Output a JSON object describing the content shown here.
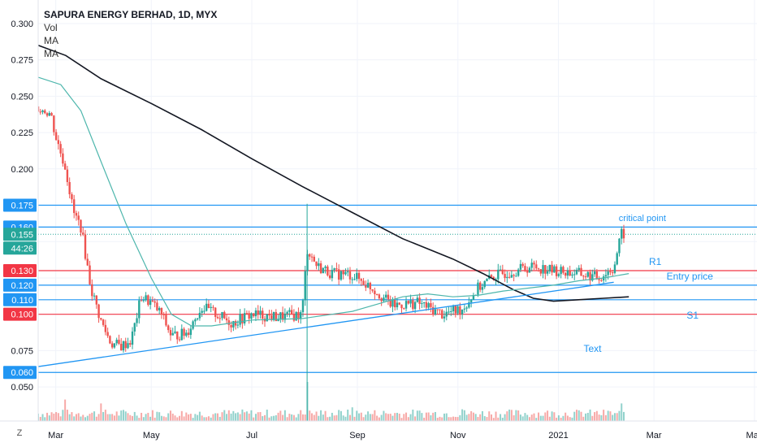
{
  "chart_data": {
    "type": "candlestick",
    "title": "SAPURA ENERGY BERHAD, 1D, MYX",
    "indicators": [
      "Vol",
      "MA",
      "MA"
    ],
    "y_ticks": [
      "0.300",
      "0.275",
      "0.250",
      "0.225",
      "0.200",
      "0.075",
      "0.050"
    ],
    "ylim": [
      0.04,
      0.305
    ],
    "x_ticks": [
      {
        "label": "Mar",
        "t": 0.1
      },
      {
        "label": "May",
        "t": 2.0
      },
      {
        "label": "Jul",
        "t": 4.0
      },
      {
        "label": "Sep",
        "t": 6.1
      },
      {
        "label": "Nov",
        "t": 8.1
      },
      {
        "label": "2021",
        "t": 10.1
      },
      {
        "label": "Mar",
        "t": 12.0
      },
      {
        "label": "May",
        "t": 14.0
      }
    ],
    "xlim": [
      -0.25,
      14.05
    ],
    "price_levels": [
      {
        "value": 0.175,
        "label": "0.175",
        "color": "#2196f3"
      },
      {
        "value": 0.16,
        "label": "0.160",
        "color": "#2196f3"
      },
      {
        "value": 0.155,
        "label": "0.155",
        "color": "#26a69a"
      },
      {
        "value": 0.13,
        "label": "0.130",
        "color": "#f23645"
      },
      {
        "value": 0.12,
        "label": "0.120",
        "color": "#2196f3"
      },
      {
        "value": 0.11,
        "label": "0.110",
        "color": "#2196f3"
      },
      {
        "value": 0.1,
        "label": "0.100",
        "color": "#f23645"
      },
      {
        "value": 0.06,
        "label": "0.060",
        "color": "#2196f3"
      }
    ],
    "countdown": "44:26",
    "horizontal_lines": [
      {
        "value": 0.175,
        "color": "#2196f3"
      },
      {
        "value": 0.16,
        "color": "#2196f3"
      },
      {
        "value": 0.13,
        "color": "#f23645"
      },
      {
        "value": 0.12,
        "color": "#2196f3"
      },
      {
        "value": 0.11,
        "color": "#2196f3"
      },
      {
        "value": 0.1,
        "color": "#f23645"
      },
      {
        "value": 0.06,
        "color": "#2196f3"
      }
    ],
    "dotted_line": {
      "value": 0.155,
      "color": "#26a69a"
    },
    "trendline": {
      "from": [
        -0.25,
        0.064
      ],
      "to": [
        11.2,
        0.122
      ],
      "color": "#2196f3"
    },
    "annotations": [
      {
        "text": "critical point",
        "t": 11.3,
        "y": 0.164,
        "color": "#2196f3"
      },
      {
        "text": "R1",
        "t": 11.9,
        "y": 0.134,
        "color": "#2196f3"
      },
      {
        "text": "Entry price",
        "t": 12.25,
        "y": 0.124,
        "color": "#2196f3"
      },
      {
        "text": "S1",
        "t": 12.65,
        "y": 0.097,
        "color": "#2196f3"
      },
      {
        "text": "Text",
        "t": 10.6,
        "y": 0.074,
        "color": "#2196f3"
      }
    ],
    "ma_long": {
      "color": "#131722",
      "points": [
        [
          -0.25,
          0.285
        ],
        [
          0.3,
          0.278
        ],
        [
          1.0,
          0.262
        ],
        [
          2.0,
          0.245
        ],
        [
          3.0,
          0.227
        ],
        [
          4.0,
          0.207
        ],
        [
          5.0,
          0.188
        ],
        [
          6.0,
          0.17
        ],
        [
          7.0,
          0.152
        ],
        [
          8.0,
          0.138
        ],
        [
          8.6,
          0.128
        ],
        [
          9.2,
          0.117
        ],
        [
          9.6,
          0.111
        ],
        [
          10.0,
          0.109
        ],
        [
          10.5,
          0.11
        ],
        [
          11.0,
          0.111
        ],
        [
          11.5,
          0.112
        ]
      ]
    },
    "ma_short": {
      "color": "#4db6ac",
      "points": [
        [
          -0.25,
          0.263
        ],
        [
          0.2,
          0.258
        ],
        [
          0.6,
          0.24
        ],
        [
          1.0,
          0.205
        ],
        [
          1.5,
          0.162
        ],
        [
          2.0,
          0.125
        ],
        [
          2.4,
          0.1
        ],
        [
          2.8,
          0.092
        ],
        [
          3.2,
          0.092
        ],
        [
          4.0,
          0.096
        ],
        [
          5.0,
          0.097
        ],
        [
          6.0,
          0.102
        ],
        [
          6.5,
          0.107
        ],
        [
          7.0,
          0.112
        ],
        [
          7.5,
          0.114
        ],
        [
          8.0,
          0.112
        ],
        [
          8.5,
          0.113
        ],
        [
          9.0,
          0.116
        ],
        [
          9.5,
          0.118
        ],
        [
          10.0,
          0.12
        ],
        [
          10.5,
          0.123
        ],
        [
          11.0,
          0.125
        ],
        [
          11.5,
          0.128
        ]
      ]
    },
    "price_anchors": [
      [
        -0.25,
        0.243
      ],
      [
        0.0,
        0.238
      ],
      [
        0.1,
        0.222
      ],
      [
        0.3,
        0.2
      ],
      [
        0.45,
        0.17
      ],
      [
        0.6,
        0.16
      ],
      [
        0.8,
        0.118
      ],
      [
        1.0,
        0.095
      ],
      [
        1.2,
        0.08
      ],
      [
        1.4,
        0.078
      ],
      [
        1.6,
        0.082
      ],
      [
        1.8,
        0.112
      ],
      [
        2.0,
        0.108
      ],
      [
        2.2,
        0.1
      ],
      [
        2.4,
        0.085
      ],
      [
        2.7,
        0.087
      ],
      [
        3.0,
        0.105
      ],
      [
        3.3,
        0.1
      ],
      [
        3.6,
        0.094
      ],
      [
        4.0,
        0.1
      ],
      [
        4.5,
        0.098
      ],
      [
        5.0,
        0.1
      ],
      [
        5.1,
        0.145
      ],
      [
        5.3,
        0.133
      ],
      [
        5.6,
        0.128
      ],
      [
        6.0,
        0.127
      ],
      [
        6.4,
        0.118
      ],
      [
        6.8,
        0.106
      ],
      [
        7.3,
        0.108
      ],
      [
        7.8,
        0.1
      ],
      [
        8.2,
        0.104
      ],
      [
        8.5,
        0.118
      ],
      [
        8.8,
        0.126
      ],
      [
        9.2,
        0.13
      ],
      [
        9.6,
        0.133
      ],
      [
        10.0,
        0.13
      ],
      [
        10.5,
        0.128
      ],
      [
        10.9,
        0.125
      ],
      [
        11.2,
        0.132
      ],
      [
        11.35,
        0.155
      ]
    ],
    "volume_spikes": [
      [
        5.1,
        1.0
      ],
      [
        0.3,
        0.55
      ],
      [
        1.0,
        0.45
      ],
      [
        11.35,
        0.45
      ],
      [
        6.0,
        0.35
      ],
      [
        8.2,
        0.3
      ]
    ]
  },
  "ui": {
    "z_button": "Z",
    "colors": {
      "up": "#26a69a",
      "down": "#ef5350",
      "axis_text": "#131722",
      "grid": "#f0f3fa"
    }
  }
}
